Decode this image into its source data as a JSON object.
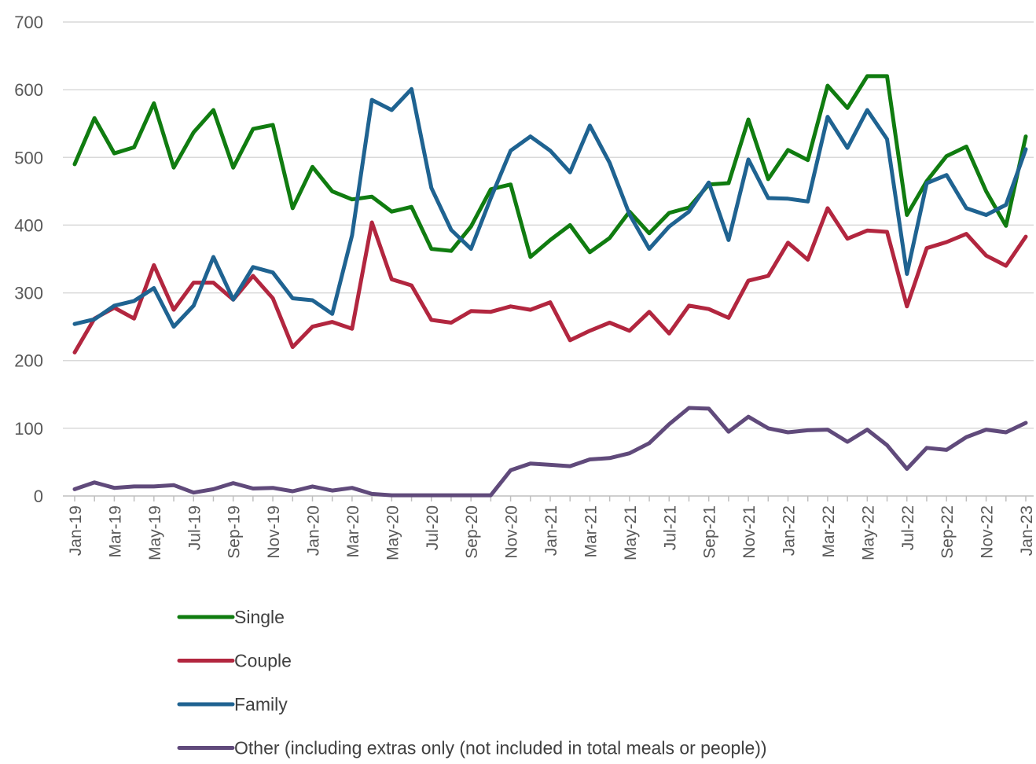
{
  "chart_data": {
    "type": "line",
    "title": "",
    "xlabel": "",
    "ylabel": "",
    "ylim": [
      0,
      700
    ],
    "y_ticks": [
      0,
      100,
      200,
      300,
      400,
      500,
      600,
      700
    ],
    "grid": true,
    "legend_position": "bottom-left",
    "x": [
      "Jan-19",
      "Feb-19",
      "Mar-19",
      "Apr-19",
      "May-19",
      "Jun-19",
      "Jul-19",
      "Aug-19",
      "Sep-19",
      "Oct-19",
      "Nov-19",
      "Dec-19",
      "Jan-20",
      "Feb-20",
      "Mar-20",
      "Apr-20",
      "May-20",
      "Jun-20",
      "Jul-20",
      "Aug-20",
      "Sep-20",
      "Oct-20",
      "Nov-20",
      "Dec-20",
      "Jan-21",
      "Feb-21",
      "Mar-21",
      "Apr-21",
      "May-21",
      "Jun-21",
      "Jul-21",
      "Aug-21",
      "Sep-21",
      "Oct-21",
      "Nov-21",
      "Dec-21",
      "Jan-22",
      "Feb-22",
      "Mar-22",
      "Apr-22",
      "May-22",
      "Jun-22",
      "Jul-22",
      "Aug-22",
      "Sep-22",
      "Oct-22",
      "Nov-22",
      "Dec-22",
      "Jan-23"
    ],
    "x_tick_labels": [
      "Jan-19",
      "Mar-19",
      "May-19",
      "Jul-19",
      "Sep-19",
      "Nov-19",
      "Jan-20",
      "Mar-20",
      "May-20",
      "Jul-20",
      "Sep-20",
      "Nov-20",
      "Jan-21",
      "Mar-21",
      "May-21",
      "Jul-21",
      "Sep-21",
      "Nov-21",
      "Jan-22",
      "Mar-22",
      "May-22",
      "Jul-22",
      "Sep-22",
      "Nov-22",
      "Jan-23"
    ],
    "series": [
      {
        "name": "Single",
        "color": "#107c10",
        "values": [
          490,
          558,
          506,
          515,
          580,
          485,
          537,
          570,
          485,
          542,
          548,
          425,
          486,
          450,
          438,
          442,
          420,
          427,
          365,
          362,
          398,
          453,
          460,
          353,
          378,
          400,
          360,
          381,
          420,
          388,
          418,
          426,
          460,
          462,
          556,
          468,
          511,
          496,
          606,
          573,
          620,
          620,
          415,
          465,
          502,
          516,
          450,
          399,
          531
        ]
      },
      {
        "name": "Couple",
        "color": "#b2263f",
        "values": [
          212,
          262,
          278,
          262,
          341,
          275,
          315,
          315,
          290,
          325,
          292,
          220,
          250,
          257,
          247,
          404,
          320,
          311,
          260,
          256,
          273,
          272,
          280,
          275,
          286,
          230,
          244,
          256,
          244,
          272,
          240,
          281,
          276,
          263,
          318,
          325,
          374,
          349,
          425,
          380,
          392,
          390,
          280,
          366,
          375,
          387,
          355,
          340,
          383
        ]
      },
      {
        "name": "Family",
        "color": "#1f6391",
        "values": [
          254,
          261,
          281,
          288,
          307,
          250,
          281,
          353,
          290,
          338,
          330,
          292,
          289,
          269,
          385,
          585,
          570,
          601,
          455,
          393,
          365,
          440,
          510,
          531,
          510,
          478,
          547,
          492,
          416,
          365,
          398,
          420,
          463,
          378,
          497,
          440,
          439,
          435,
          560,
          514,
          570,
          527,
          328,
          462,
          474,
          425,
          415,
          430,
          512
        ]
      },
      {
        "name": "Other (including extras only (not included in total meals or people))",
        "color": "#604a7b",
        "values": [
          10,
          20,
          12,
          14,
          14,
          16,
          5,
          10,
          19,
          11,
          12,
          7,
          14,
          8,
          12,
          3,
          1,
          1,
          1,
          1,
          1,
          1,
          38,
          48,
          46,
          44,
          54,
          56,
          63,
          78,
          106,
          130,
          129,
          95,
          117,
          100,
          94,
          97,
          98,
          80,
          98,
          75,
          40,
          71,
          68,
          87,
          98,
          94,
          108
        ]
      }
    ]
  }
}
